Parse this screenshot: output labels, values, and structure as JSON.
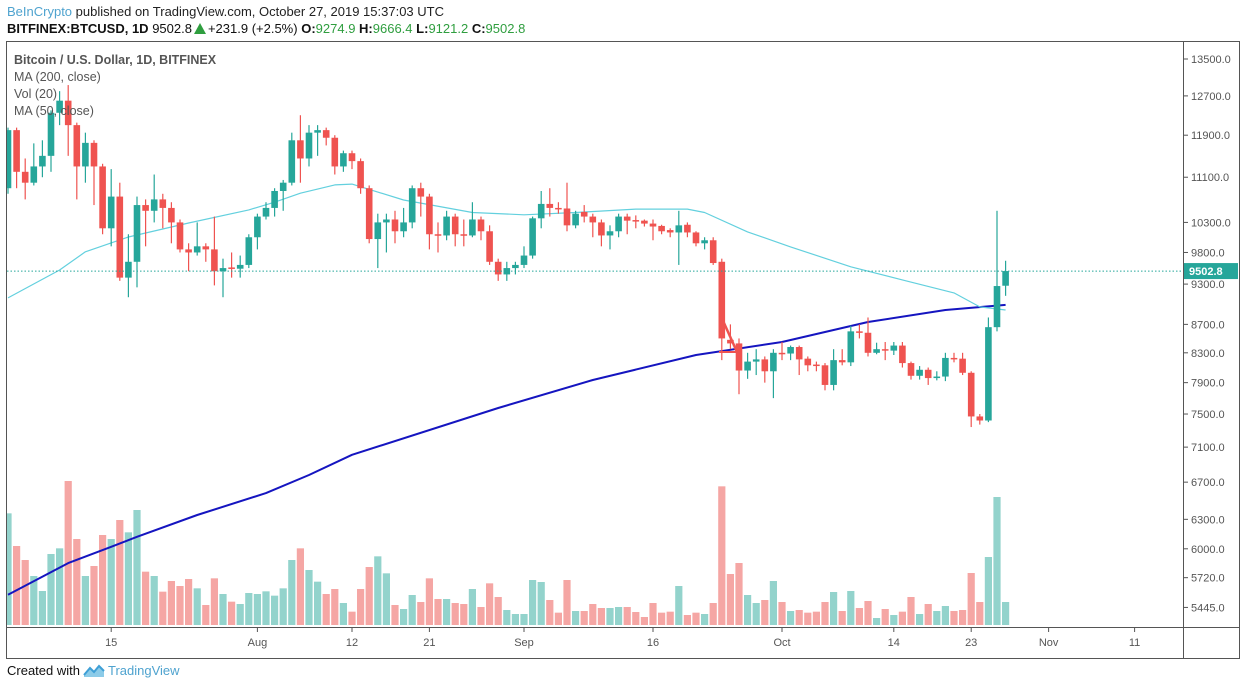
{
  "header": {
    "publisher": "BeInCrypto",
    "published_text": "published on TradingView.com, October 27, 2019 15:37:03 UTC",
    "symbol": "BITFINEX:BTCUSD, 1D",
    "last": "9502.8",
    "change": "+231.9 (+2.5%)",
    "o_label": "O:",
    "o": "9274.9",
    "h_label": "H:",
    "h": "9666.4",
    "l_label": "L:",
    "l": "9121.2",
    "c_label": "C:",
    "c": "9502.8"
  },
  "legend": {
    "title": "Bitcoin / U.S. Dollar, 1D, BITFINEX",
    "ma200": "MA (200, close)",
    "vol": "Vol (20)",
    "ma50": "MA (50, close)"
  },
  "footer": {
    "created_with": "Created with",
    "brand": "TradingView"
  },
  "colors": {
    "up": "#26a69a",
    "down": "#ef5350",
    "vol_up": "#93d3cc",
    "vol_down": "#f5a6a4",
    "ma50": "#63d0de",
    "ma200": "#1515c0",
    "last_price": "#26a69a",
    "accent_green": "#2f9e3f"
  },
  "chart_data": {
    "type": "candlestick",
    "title": "Bitcoin / U.S. Dollar, 1D, BITFINEX",
    "y_scale": "log",
    "ylim": [
      5300,
      13900
    ],
    "grid": false,
    "y_ticks": [
      "13500.0",
      "12700.0",
      "11900.0",
      "11100.0",
      "10300.0",
      "9800.0",
      "9300.0",
      "8700.0",
      "8300.0",
      "7900.0",
      "7500.0",
      "7100.0",
      "6700.0",
      "6300.0",
      "6000.0",
      "5720.0",
      "5445.0"
    ],
    "x_ticks": [
      {
        "label": "15",
        "date": "2019-07-15"
      },
      {
        "label": "Aug",
        "date": "2019-08-01"
      },
      {
        "label": "12",
        "date": "2019-08-12"
      },
      {
        "label": "21",
        "date": "2019-08-21"
      },
      {
        "label": "Sep",
        "date": "2019-09-01"
      },
      {
        "label": "16",
        "date": "2019-09-16"
      },
      {
        "label": "Oct",
        "date": "2019-10-01"
      },
      {
        "label": "14",
        "date": "2019-10-14"
      },
      {
        "label": "23",
        "date": "2019-10-23"
      },
      {
        "label": "Nov",
        "date": "2019-11-01"
      },
      {
        "label": "11",
        "date": "2019-11-11"
      }
    ],
    "last_price": "9502.8",
    "candle_fields": [
      "date",
      "open",
      "high",
      "low",
      "close",
      "volume_relative"
    ],
    "candles": [
      [
        "2019-07-03",
        10900,
        12050,
        10800,
        12000,
        335
      ],
      [
        "2019-07-04",
        12000,
        12050,
        10900,
        11200,
        237
      ],
      [
        "2019-07-05",
        11200,
        11450,
        10700,
        11000,
        195
      ],
      [
        "2019-07-06",
        11000,
        11740,
        10950,
        11300,
        147
      ],
      [
        "2019-07-07",
        11300,
        11800,
        11100,
        11500,
        102
      ],
      [
        "2019-07-08",
        11500,
        12400,
        11200,
        12350,
        213
      ],
      [
        "2019-07-09",
        12350,
        12800,
        12100,
        12600,
        230
      ],
      [
        "2019-07-10",
        12600,
        12930,
        11500,
        12100,
        432
      ],
      [
        "2019-07-11",
        12100,
        12150,
        10700,
        11300,
        258
      ],
      [
        "2019-07-12",
        11300,
        11950,
        11000,
        11750,
        147
      ],
      [
        "2019-07-13",
        11750,
        11800,
        10600,
        11300,
        177
      ],
      [
        "2019-07-14",
        11300,
        11350,
        10100,
        10200,
        270
      ],
      [
        "2019-07-15",
        10200,
        11250,
        9900,
        10750,
        258
      ],
      [
        "2019-07-16",
        10750,
        11000,
        9350,
        9400,
        315
      ],
      [
        "2019-07-17",
        9400,
        10100,
        9100,
        9650,
        278
      ],
      [
        "2019-07-18",
        9650,
        10750,
        9250,
        10600,
        345
      ],
      [
        "2019-07-19",
        10600,
        10700,
        9900,
        10500,
        160
      ],
      [
        "2019-07-20",
        10500,
        11150,
        10300,
        10700,
        147
      ],
      [
        "2019-07-21",
        10700,
        10800,
        10200,
        10550,
        100
      ],
      [
        "2019-07-22",
        10550,
        10650,
        9950,
        10300,
        132
      ],
      [
        "2019-07-23",
        10300,
        10350,
        9800,
        9850,
        117
      ],
      [
        "2019-07-24",
        9850,
        9950,
        9500,
        9800,
        138
      ],
      [
        "2019-07-25",
        9800,
        10300,
        9750,
        9900,
        110
      ],
      [
        "2019-07-26",
        9900,
        9950,
        9650,
        9850,
        60
      ],
      [
        "2019-07-27",
        9850,
        10400,
        9280,
        9500,
        140
      ],
      [
        "2019-07-28",
        9500,
        9700,
        9100,
        9550,
        93
      ],
      [
        "2019-07-29",
        9560,
        9800,
        9400,
        9540,
        70
      ],
      [
        "2019-07-30",
        9540,
        9750,
        9400,
        9600,
        63
      ],
      [
        "2019-07-31",
        9600,
        10100,
        9550,
        10050,
        96
      ],
      [
        "2019-08-01",
        10050,
        10450,
        9850,
        10400,
        93
      ],
      [
        "2019-08-02",
        10400,
        10650,
        10350,
        10550,
        101
      ],
      [
        "2019-08-03",
        10550,
        10900,
        10400,
        10850,
        88
      ],
      [
        "2019-08-04",
        10850,
        11050,
        10500,
        11000,
        110
      ],
      [
        "2019-08-05",
        11000,
        11950,
        10950,
        11800,
        195
      ],
      [
        "2019-08-06",
        11800,
        12300,
        11000,
        11450,
        230
      ],
      [
        "2019-08-07",
        11450,
        12100,
        11300,
        11950,
        165
      ],
      [
        "2019-08-08",
        11950,
        12100,
        11500,
        12000,
        130
      ],
      [
        "2019-08-09",
        12000,
        12050,
        11700,
        11850,
        93
      ],
      [
        "2019-08-10",
        11850,
        11900,
        11150,
        11300,
        108
      ],
      [
        "2019-08-11",
        11300,
        11600,
        11200,
        11550,
        66
      ],
      [
        "2019-08-12",
        11550,
        11600,
        11250,
        11400,
        40
      ],
      [
        "2019-08-13",
        11400,
        11450,
        10800,
        10900,
        108
      ],
      [
        "2019-08-14",
        10900,
        10950,
        9950,
        10020,
        174
      ],
      [
        "2019-08-15",
        10020,
        10450,
        9550,
        10300,
        206
      ],
      [
        "2019-08-16",
        10300,
        10450,
        9800,
        10350,
        155
      ],
      [
        "2019-08-17",
        10350,
        10500,
        9950,
        10150,
        60
      ],
      [
        "2019-08-18",
        10150,
        10550,
        10050,
        10300,
        48
      ],
      [
        "2019-08-19",
        10300,
        10950,
        10200,
        10900,
        90
      ],
      [
        "2019-08-20",
        10900,
        11000,
        10400,
        10750,
        69
      ],
      [
        "2019-08-21",
        10750,
        10800,
        9850,
        10100,
        140
      ],
      [
        "2019-08-22",
        10100,
        10300,
        9800,
        10080,
        78
      ],
      [
        "2019-08-23",
        10080,
        10500,
        10000,
        10400,
        78
      ],
      [
        "2019-08-24",
        10400,
        10450,
        9900,
        10100,
        66
      ],
      [
        "2019-08-25",
        10100,
        10350,
        9900,
        10080,
        63
      ],
      [
        "2019-08-26",
        10080,
        10650,
        10050,
        10350,
        108
      ],
      [
        "2019-08-27",
        10350,
        10400,
        10000,
        10150,
        54
      ],
      [
        "2019-08-28",
        10150,
        10250,
        9600,
        9650,
        125
      ],
      [
        "2019-08-29",
        9650,
        9700,
        9350,
        9450,
        84
      ],
      [
        "2019-08-30",
        9450,
        9650,
        9350,
        9550,
        45
      ],
      [
        "2019-08-31",
        9550,
        9650,
        9450,
        9600,
        33
      ],
      [
        "2019-09-01",
        9600,
        9900,
        9550,
        9750,
        33
      ],
      [
        "2019-09-02",
        9750,
        10400,
        9700,
        10370,
        135
      ],
      [
        "2019-09-03",
        10370,
        10850,
        10200,
        10620,
        129
      ],
      [
        "2019-09-04",
        10620,
        10900,
        10400,
        10550,
        75
      ],
      [
        "2019-09-05",
        10550,
        10650,
        10450,
        10540,
        37
      ],
      [
        "2019-09-06",
        10540,
        11000,
        10150,
        10250,
        135
      ],
      [
        "2019-09-07",
        10250,
        10500,
        10200,
        10450,
        42
      ],
      [
        "2019-09-08",
        10480,
        10600,
        10300,
        10400,
        42
      ],
      [
        "2019-09-09",
        10400,
        10450,
        10050,
        10300,
        63
      ],
      [
        "2019-09-10",
        10300,
        10350,
        9900,
        10080,
        51
      ],
      [
        "2019-09-11",
        10080,
        10250,
        9850,
        10150,
        51
      ],
      [
        "2019-09-12",
        10150,
        10450,
        10050,
        10400,
        54
      ],
      [
        "2019-09-13",
        10400,
        10450,
        10100,
        10330,
        54
      ],
      [
        "2019-09-14",
        10340,
        10420,
        10200,
        10320,
        39
      ],
      [
        "2019-09-15",
        10330,
        10350,
        10230,
        10280,
        24
      ],
      [
        "2019-09-16",
        10280,
        10350,
        10000,
        10230,
        66
      ],
      [
        "2019-09-17",
        10240,
        10260,
        10100,
        10150,
        37
      ],
      [
        "2019-09-18",
        10170,
        10200,
        10050,
        10130,
        40
      ],
      [
        "2019-09-19",
        10130,
        10500,
        9600,
        10250,
        117
      ],
      [
        "2019-09-20",
        10260,
        10300,
        10050,
        10130,
        30
      ],
      [
        "2019-09-21",
        10130,
        10150,
        9900,
        9950,
        37
      ],
      [
        "2019-09-22",
        9950,
        10050,
        9850,
        10000,
        33
      ],
      [
        "2019-09-23",
        10000,
        10050,
        9600,
        9630,
        66
      ],
      [
        "2019-09-24",
        9650,
        9700,
        8200,
        8500,
        416
      ],
      [
        "2019-09-25",
        8480,
        8700,
        8350,
        8430,
        153
      ],
      [
        "2019-09-26",
        8430,
        8500,
        7750,
        8060,
        186
      ],
      [
        "2019-09-27",
        8060,
        8300,
        7950,
        8180,
        90
      ],
      [
        "2019-09-28",
        8180,
        8350,
        8000,
        8210,
        66
      ],
      [
        "2019-09-29",
        8210,
        8250,
        7900,
        8050,
        75
      ],
      [
        "2019-09-30",
        8050,
        8350,
        7700,
        8300,
        132
      ],
      [
        "2019-10-01",
        8300,
        8450,
        8200,
        8290,
        69
      ],
      [
        "2019-10-02",
        8290,
        8400,
        8200,
        8380,
        42
      ],
      [
        "2019-10-03",
        8380,
        8400,
        8000,
        8210,
        45
      ],
      [
        "2019-10-04",
        8220,
        8250,
        8050,
        8130,
        37
      ],
      [
        "2019-10-05",
        8140,
        8180,
        8050,
        8120,
        40
      ],
      [
        "2019-10-06",
        8130,
        8160,
        7800,
        7870,
        69
      ],
      [
        "2019-10-07",
        7870,
        8350,
        7800,
        8200,
        99
      ],
      [
        "2019-10-08",
        8200,
        8350,
        8130,
        8170,
        42
      ],
      [
        "2019-10-09",
        8170,
        8680,
        8120,
        8600,
        102
      ],
      [
        "2019-10-10",
        8600,
        8700,
        8500,
        8580,
        51
      ],
      [
        "2019-10-11",
        8580,
        8800,
        8250,
        8300,
        72
      ],
      [
        "2019-10-12",
        8300,
        8440,
        8280,
        8350,
        21
      ],
      [
        "2019-10-13",
        8350,
        8450,
        8200,
        8330,
        48
      ],
      [
        "2019-10-14",
        8330,
        8450,
        8270,
        8400,
        30
      ],
      [
        "2019-10-15",
        8400,
        8450,
        8100,
        8160,
        40
      ],
      [
        "2019-10-16",
        8160,
        8180,
        7940,
        7990,
        84
      ],
      [
        "2019-10-17",
        7990,
        8120,
        7940,
        8070,
        33
      ],
      [
        "2019-10-18",
        8070,
        8100,
        7870,
        7960,
        63
      ],
      [
        "2019-10-19",
        7960,
        8050,
        7930,
        7980,
        42
      ],
      [
        "2019-10-20",
        7980,
        8300,
        7920,
        8230,
        57
      ],
      [
        "2019-10-21",
        8230,
        8300,
        8170,
        8210,
        42
      ],
      [
        "2019-10-22",
        8220,
        8300,
        8000,
        8030,
        45
      ],
      [
        "2019-10-23",
        8030,
        8050,
        7340,
        7470,
        156
      ],
      [
        "2019-10-24",
        7470,
        7500,
        7370,
        7420,
        69
      ],
      [
        "2019-10-25",
        7420,
        8800,
        7400,
        8660,
        204
      ],
      [
        "2019-10-26",
        8660,
        10500,
        8600,
        9270,
        384
      ],
      [
        "2019-10-27",
        9274.9,
        9666.4,
        9121.2,
        9502.8,
        69
      ]
    ],
    "ma50": [
      [
        "2019-07-03",
        9090
      ],
      [
        "2019-07-09",
        9520
      ],
      [
        "2019-07-12",
        9810
      ],
      [
        "2019-07-17",
        10055
      ],
      [
        "2019-07-24",
        10290
      ],
      [
        "2019-07-31",
        10515
      ],
      [
        "2019-08-03",
        10650
      ],
      [
        "2019-08-06",
        10810
      ],
      [
        "2019-08-10",
        10960
      ],
      [
        "2019-08-12",
        10975
      ],
      [
        "2019-08-18",
        10690
      ],
      [
        "2019-08-26",
        10470
      ],
      [
        "2019-09-01",
        10430
      ],
      [
        "2019-09-07",
        10470
      ],
      [
        "2019-09-14",
        10530
      ],
      [
        "2019-09-20",
        10530
      ],
      [
        "2019-09-22",
        10470
      ],
      [
        "2019-09-27",
        10140
      ],
      [
        "2019-10-02",
        9890
      ],
      [
        "2019-10-09",
        9570
      ],
      [
        "2019-10-15",
        9365
      ],
      [
        "2019-10-21",
        9165
      ],
      [
        "2019-10-24",
        8955
      ],
      [
        "2019-10-27",
        8910
      ]
    ],
    "ma200": [
      [
        "2019-07-03",
        5560
      ],
      [
        "2019-07-10",
        5860
      ],
      [
        "2019-07-15",
        6020
      ],
      [
        "2019-07-18",
        6120
      ],
      [
        "2019-07-25",
        6345
      ],
      [
        "2019-08-02",
        6580
      ],
      [
        "2019-08-07",
        6780
      ],
      [
        "2019-08-12",
        7010
      ],
      [
        "2019-08-29",
        7575
      ],
      [
        "2019-09-09",
        7935
      ],
      [
        "2019-09-21",
        8270
      ],
      [
        "2019-10-01",
        8450
      ],
      [
        "2019-10-11",
        8735
      ],
      [
        "2019-10-20",
        8910
      ],
      [
        "2019-10-27",
        8985
      ]
    ]
  }
}
